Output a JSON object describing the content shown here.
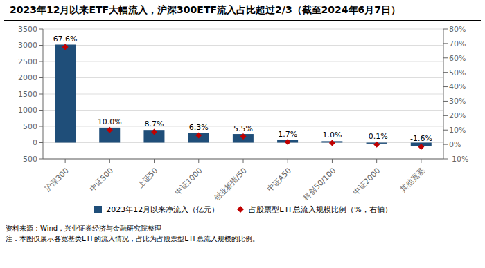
{
  "chart_data": {
    "type": "bar",
    "title": "2023年12月以来ETF大幅流入，沪深300ETF流入占比超过2/3（截至2024年6月7日）",
    "categories": [
      "沪深300",
      "中证500",
      "上证50",
      "中证1000",
      "创业板指/50",
      "中证A50",
      "科创50/100",
      "中证2000",
      "其他宽基"
    ],
    "series": [
      {
        "name": "2023年12月以来净流入（亿元）",
        "type": "bar",
        "color": "#1F4E79",
        "values": [
          3020,
          460,
          390,
          295,
          265,
          80,
          45,
          -30,
          -110
        ]
      },
      {
        "name": "占股票型ETF总流入规模比例（%，右轴）",
        "type": "scatter",
        "axis": "y2",
        "color": "#C00000",
        "marker": "diamond",
        "data_labels": true,
        "values": [
          67.6,
          10.0,
          8.7,
          6.3,
          5.5,
          1.7,
          1.0,
          -0.1,
          -1.6
        ],
        "value_labels": [
          "67.6%",
          "10.0%",
          "8.7%",
          "6.3%",
          "5.5%",
          "1.7%",
          "1.0%",
          "-0.1%",
          "-1.6%"
        ]
      }
    ],
    "ylim": [
      -500,
      3500
    ],
    "yticks": [
      -500,
      0,
      500,
      1000,
      1500,
      2000,
      2500,
      3000,
      3500
    ],
    "y2lim": [
      -10,
      80
    ],
    "y2ticks": [
      {
        "value": -10,
        "label": "-10%"
      },
      {
        "value": 0,
        "label": "0%"
      },
      {
        "value": 10,
        "label": "10%"
      },
      {
        "value": 20,
        "label": "20%"
      },
      {
        "value": 30,
        "label": "30%"
      },
      {
        "value": 40,
        "label": "40%"
      },
      {
        "value": 50,
        "label": "50%"
      },
      {
        "value": 60,
        "label": "60%"
      },
      {
        "value": 70,
        "label": "70%"
      },
      {
        "value": 80,
        "label": "80%"
      }
    ],
    "grid": true,
    "legend": "bottom",
    "annotations": [
      "资料来源：Wind，兴业证券经济与金融研究院整理",
      "注：本图仅展示各宽基类ETF的流入情况；占比为占股票型ETF总流入规模的比例。"
    ]
  }
}
